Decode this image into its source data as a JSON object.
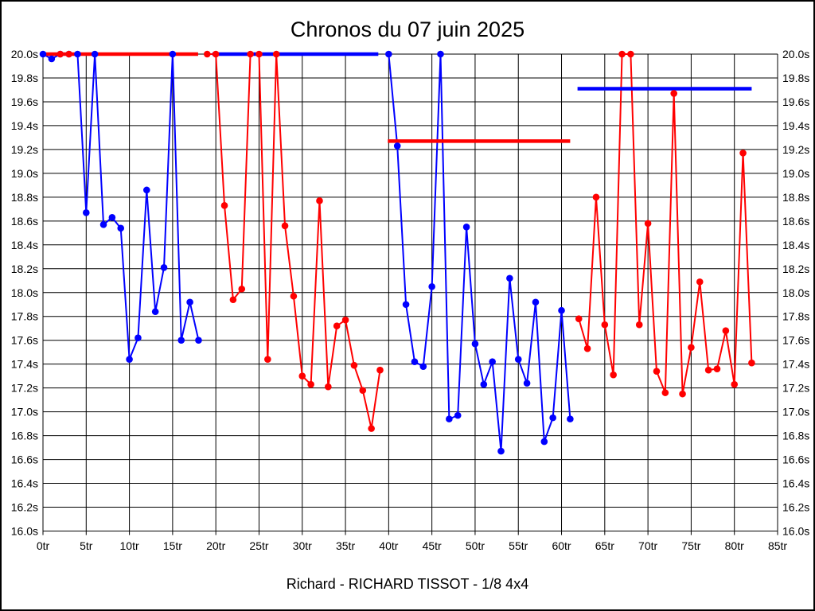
{
  "chart_data": {
    "type": "line",
    "title": "Chronos du 07 juin 2025",
    "subtitle": "Richard - RICHARD TISSOT - 1/8 4x4",
    "x_axis": {
      "min": 0,
      "max": 85,
      "tick_step": 5,
      "unit": "tr",
      "labels": [
        "0tr",
        "5tr",
        "10tr",
        "15tr",
        "20tr",
        "25tr",
        "30tr",
        "35tr",
        "40tr",
        "45tr",
        "50tr",
        "55tr",
        "60tr",
        "65tr",
        "70tr",
        "75tr",
        "80tr",
        "85tr"
      ]
    },
    "y_axis": {
      "min": 16.0,
      "max": 20.0,
      "tick_step": 0.2,
      "unit": "s",
      "labels": [
        "20.0s",
        "19.8s",
        "19.6s",
        "19.4s",
        "19.2s",
        "19.0s",
        "18.8s",
        "18.6s",
        "18.4s",
        "18.2s",
        "18.0s",
        "17.8s",
        "17.6s",
        "17.4s",
        "17.2s",
        "17.0s",
        "16.8s",
        "16.6s",
        "16.4s",
        "16.2s",
        "16.0s"
      ]
    },
    "grid": true,
    "colors": {
      "blue": "#0000ff",
      "red": "#ff0000",
      "grid": "#000000",
      "background": "#ffffff",
      "text": "#000000"
    },
    "series": [
      {
        "name": "run-1",
        "color": "#0000ff",
        "start_lap": 0,
        "lap_times_s": [
          20.0,
          19.96,
          20.0,
          20.0,
          20.0,
          18.67,
          20.0,
          18.57,
          18.63,
          18.54,
          17.44,
          17.62,
          18.86,
          17.84,
          18.21,
          20.0,
          17.6,
          17.92,
          17.6
        ]
      },
      {
        "name": "run-2",
        "color": "#ff0000",
        "start_lap": 19,
        "lap_times_s": [
          20.0,
          20.0,
          18.73,
          17.94,
          18.03,
          20.0,
          20.0,
          17.44,
          20.0,
          18.56,
          17.97,
          17.3,
          17.23,
          18.77,
          17.21,
          17.72,
          17.77,
          17.39,
          17.18,
          16.86,
          17.35
        ]
      },
      {
        "name": "run-3",
        "color": "#0000ff",
        "start_lap": 40,
        "lap_times_s": [
          20.0,
          19.23,
          17.9,
          17.42,
          17.38,
          18.05,
          20.0,
          16.94,
          16.97,
          18.55,
          17.57,
          17.23,
          17.42,
          16.67,
          18.12,
          17.44,
          17.24,
          17.92,
          16.75,
          16.95,
          17.85,
          16.94
        ]
      },
      {
        "name": "run-4",
        "color": "#ff0000",
        "start_lap": 62,
        "lap_times_s": [
          17.78,
          17.53,
          18.8,
          17.73,
          17.31,
          20.0,
          20.0,
          17.73,
          18.58,
          17.34,
          17.16,
          19.67,
          17.15,
          17.54,
          18.09,
          17.35,
          17.36,
          17.68,
          17.23,
          19.17,
          17.41
        ]
      }
    ],
    "average_lines": [
      {
        "name": "avg-line-1",
        "color": "#ff0000",
        "value_s": 20.0,
        "from_lap": 0.0,
        "to_lap": 17.95
      },
      {
        "name": "avg-line-2",
        "color": "#0000ff",
        "value_s": 20.0,
        "from_lap": 19.6,
        "to_lap": 38.8
      },
      {
        "name": "avg-line-3",
        "color": "#ff0000",
        "value_s": 19.27,
        "from_lap": 39.9,
        "to_lap": 61.0
      },
      {
        "name": "avg-line-4",
        "color": "#0000ff",
        "value_s": 19.71,
        "from_lap": 61.85,
        "to_lap": 82.0
      }
    ],
    "extra_markers": [
      {
        "color": "#ff0000",
        "lap": 2,
        "value_s": 20.0
      },
      {
        "color": "#ff0000",
        "lap": 3,
        "value_s": 20.0
      }
    ]
  }
}
